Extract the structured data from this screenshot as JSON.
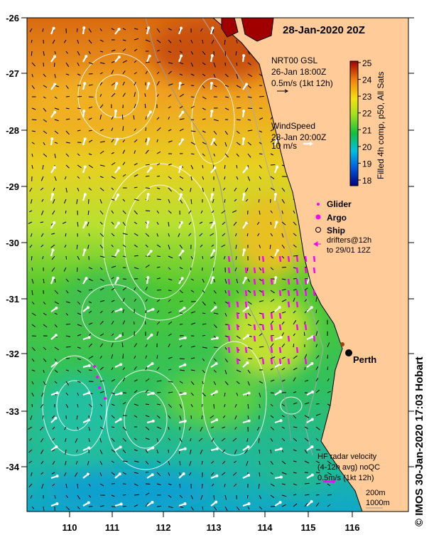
{
  "title": "28-Jan-2020 20Z",
  "lon_ticks": [
    "110",
    "111",
    "112",
    "113",
    "114",
    "115",
    "116"
  ],
  "lat_ticks": [
    "-26",
    "-27",
    "-28",
    "-29",
    "-30",
    "-31",
    "-32",
    "-33",
    "-34"
  ],
  "current_legend": {
    "line1": "NRT00 GSL",
    "line2": "26-Jan 18:00Z",
    "line3": "0.5m/s (1kt 12h)"
  },
  "wind_legend": {
    "line1": "WindSpeed",
    "line2": "28-Jan 20:00Z",
    "line3": "10 m/s"
  },
  "colorbar": {
    "label": "Filled 4h comp, p50, All Sats",
    "ticks": [
      "18",
      "19",
      "20",
      "21",
      "22",
      "23",
      "24",
      "25"
    ],
    "min": 18,
    "max": 25
  },
  "legend": {
    "glider": "Glider",
    "argo": "Argo",
    "ship": "Ship",
    "drifters1": "drifters@12h",
    "drifters2": "to 29/01 12Z"
  },
  "city": "Perth",
  "hf_radar": {
    "line1": "HF radar velocity",
    "line2": "(4-12h avg) noQC",
    "line3": "0.5m/s (1kt 12h)"
  },
  "isobaths": {
    "a": "200m",
    "b": "1000m"
  },
  "copyright": "© IMOS 30-Jan-2020 17:03 Hobart",
  "colors": {
    "land": "#FFCC99",
    "glider": "#FF00FF",
    "isobath": "#999999"
  }
}
